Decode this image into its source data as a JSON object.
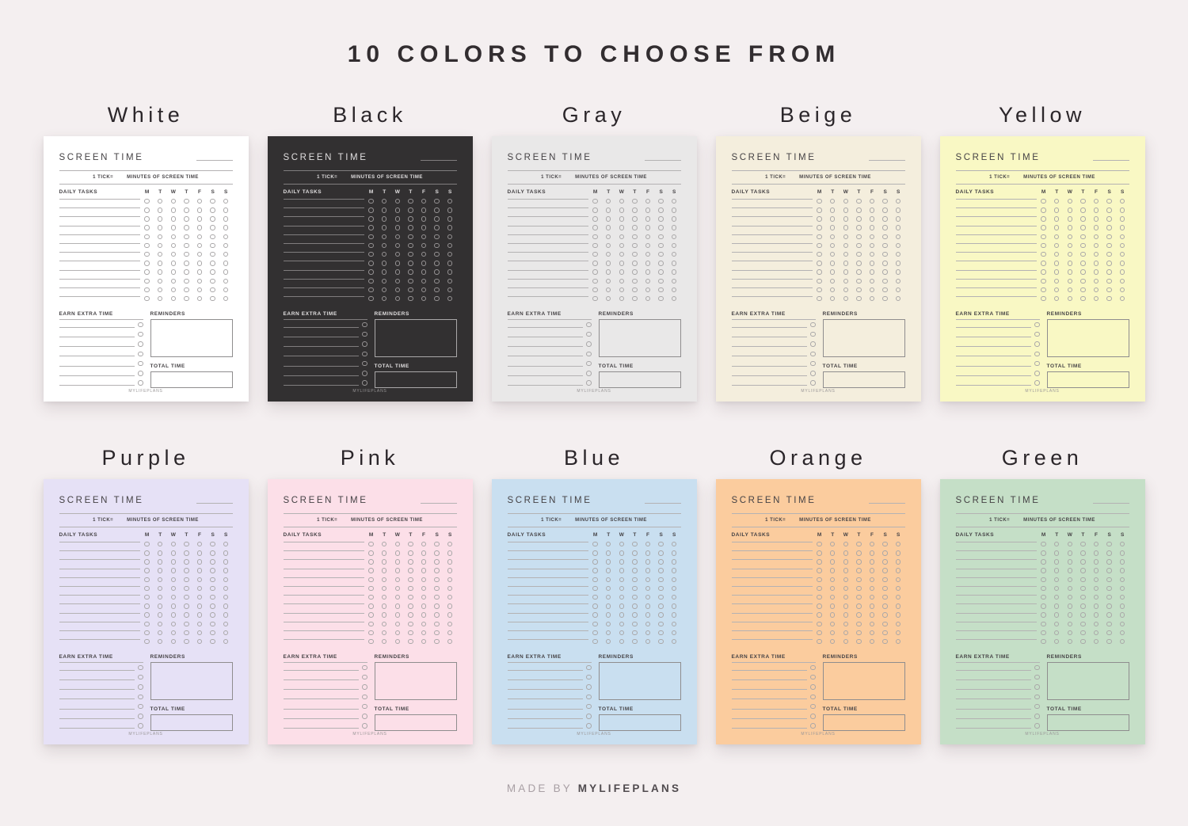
{
  "page": {
    "background": "#f4eff0",
    "heading": "10 COLORS TO CHOOSE FROM",
    "footer": {
      "made_by": "MADE BY",
      "brand": "MYLIFEPLANS"
    }
  },
  "planner": {
    "title": "SCREEN TIME",
    "tick_label": "1 TICK=",
    "tick_suffix": "MINUTES OF SCREEN TIME",
    "daily_tasks_label": "DAILY TASKS",
    "days": [
      "M",
      "T",
      "W",
      "T",
      "F",
      "S",
      "S"
    ],
    "task_rows": 12,
    "earn_label": "EARN EXTRA TIME",
    "extra_rows": 7,
    "reminders_label": "REMINDERS",
    "total_label": "TOTAL TIME",
    "brand": "MYLIFEPLANS"
  },
  "themes": {
    "light": {
      "ink": "#454245",
      "line": "#b4b2b3",
      "circle": "#a9a7a8",
      "box": "#8f8d8e",
      "brand": "#9a9798"
    },
    "dark": {
      "ink": "#e0dedf",
      "line": "#807d7e",
      "circle": "#969394",
      "box": "#aaa8a9",
      "brand": "#979495"
    }
  },
  "planners": [
    {
      "label": "White",
      "bg": "#ffffff",
      "theme": "light"
    },
    {
      "label": "Black",
      "bg": "#323031",
      "theme": "dark"
    },
    {
      "label": "Gray",
      "bg": "#e9e8e8",
      "theme": "light"
    },
    {
      "label": "Beige",
      "bg": "#f4eedd",
      "theme": "light"
    },
    {
      "label": "Yellow",
      "bg": "#f9f8c4",
      "theme": "light"
    },
    {
      "label": "Purple",
      "bg": "#e6e1f6",
      "theme": "light"
    },
    {
      "label": "Pink",
      "bg": "#fcdfe8",
      "theme": "light"
    },
    {
      "label": "Blue",
      "bg": "#c9dff0",
      "theme": "light"
    },
    {
      "label": "Orange",
      "bg": "#fbcc9e",
      "theme": "light"
    },
    {
      "label": "Green",
      "bg": "#c5dfc7",
      "theme": "light"
    }
  ]
}
